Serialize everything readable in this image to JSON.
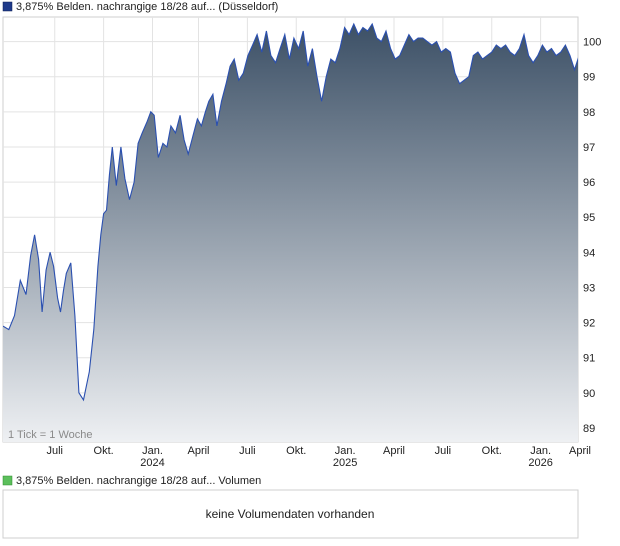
{
  "price_legend": {
    "label": "3,875% Belden. nachrangige 18/28 auf... (Düsseldorf)",
    "color": "#1f3a8a"
  },
  "volume_legend": {
    "label": "3,875% Belden. nachrangige 18/28 auf... Volumen",
    "color": "#5cbf5c"
  },
  "tick_note": "1 Tick = 1 Woche",
  "volume_message": "keine Volumendaten vorhanden",
  "colors": {
    "line": "#2b50b0",
    "fill_top": "#3c5066",
    "fill_bottom": "#eef0f3",
    "grid": "#e3e3e3",
    "frame": "#cfcfcf"
  },
  "chart_data": {
    "type": "area",
    "title": "",
    "xlabel": "",
    "ylabel": "",
    "ylim": [
      88.6,
      100.7
    ],
    "yticks": [
      89,
      90,
      91,
      92,
      93,
      94,
      95,
      96,
      97,
      98,
      99,
      100
    ],
    "x_tick_labels": [
      {
        "x": 0.09,
        "label": "Juli",
        "year": ""
      },
      {
        "x": 0.175,
        "label": "Okt.",
        "year": ""
      },
      {
        "x": 0.26,
        "label": "Jan.",
        "year": "2024"
      },
      {
        "x": 0.34,
        "label": "April",
        "year": ""
      },
      {
        "x": 0.425,
        "label": "Juli",
        "year": ""
      },
      {
        "x": 0.51,
        "label": "Okt.",
        "year": ""
      },
      {
        "x": 0.595,
        "label": "Jan.",
        "year": "2025"
      },
      {
        "x": 0.68,
        "label": "April",
        "year": ""
      },
      {
        "x": 0.765,
        "label": "Juli",
        "year": ""
      },
      {
        "x": 0.85,
        "label": "Okt.",
        "year": ""
      },
      {
        "x": 0.935,
        "label": "Jan.",
        "year": "2026"
      },
      {
        "x": 1.015,
        "label": "April",
        "year": ""
      }
    ],
    "series": [
      {
        "x": [
          0.0,
          0.01,
          0.02,
          0.03,
          0.04,
          0.048,
          0.055,
          0.062,
          0.068,
          0.075,
          0.082,
          0.088,
          0.095,
          0.1,
          0.105,
          0.11,
          0.118,
          0.125,
          0.132,
          0.14,
          0.15,
          0.158,
          0.165,
          0.17,
          0.175,
          0.18,
          0.185,
          0.19,
          0.197,
          0.205,
          0.212,
          0.22,
          0.228,
          0.235,
          0.242,
          0.25,
          0.257,
          0.263,
          0.27,
          0.278,
          0.285,
          0.292,
          0.3,
          0.308,
          0.315,
          0.322,
          0.33,
          0.338,
          0.345,
          0.352,
          0.358,
          0.365,
          0.372,
          0.38,
          0.388,
          0.395,
          0.402,
          0.41,
          0.418,
          0.426,
          0.434,
          0.442,
          0.45,
          0.458,
          0.466,
          0.474,
          0.482,
          0.49,
          0.498,
          0.506,
          0.514,
          0.522,
          0.53,
          0.538,
          0.546,
          0.554,
          0.562,
          0.57,
          0.578,
          0.586,
          0.594,
          0.602,
          0.61,
          0.618,
          0.626,
          0.634,
          0.642,
          0.65,
          0.658,
          0.666,
          0.674,
          0.682,
          0.69,
          0.698,
          0.706,
          0.714,
          0.722,
          0.73,
          0.738,
          0.746,
          0.754,
          0.762,
          0.77,
          0.778,
          0.786,
          0.794,
          0.802,
          0.81,
          0.818,
          0.826,
          0.834,
          0.842,
          0.85,
          0.858,
          0.866,
          0.874,
          0.882,
          0.89,
          0.898,
          0.906,
          0.914,
          0.922,
          0.93,
          0.938,
          0.946,
          0.954,
          0.962,
          0.97,
          0.978,
          0.986,
          0.994,
          1.002
        ],
        "values": [
          91.9,
          91.8,
          92.2,
          93.2,
          92.8,
          93.9,
          94.5,
          93.8,
          92.3,
          93.5,
          94.0,
          93.6,
          92.7,
          92.3,
          92.9,
          93.4,
          93.7,
          92.2,
          90.0,
          89.8,
          90.6,
          91.8,
          93.6,
          94.5,
          95.1,
          95.2,
          96.2,
          97.0,
          95.9,
          97.0,
          96.1,
          95.5,
          96.0,
          97.1,
          97.4,
          97.7,
          98.0,
          97.9,
          96.7,
          97.1,
          97.0,
          97.6,
          97.4,
          97.9,
          97.2,
          96.8,
          97.3,
          97.8,
          97.6,
          98.0,
          98.3,
          98.5,
          97.6,
          98.3,
          98.8,
          99.3,
          99.5,
          98.9,
          99.1,
          99.6,
          99.9,
          100.2,
          99.7,
          100.3,
          99.6,
          99.4,
          99.8,
          100.2,
          99.5,
          100.1,
          99.8,
          100.3,
          99.3,
          99.8,
          99.0,
          98.3,
          99.0,
          99.5,
          99.4,
          99.8,
          100.4,
          100.2,
          100.5,
          100.2,
          100.4,
          100.3,
          100.5,
          100.1,
          100.0,
          100.3,
          99.8,
          99.5,
          99.6,
          99.9,
          100.2,
          100.0,
          100.1,
          100.1,
          100.0,
          99.9,
          100.0,
          99.7,
          99.8,
          99.7,
          99.1,
          98.8,
          98.9,
          99.0,
          99.6,
          99.7,
          99.5,
          99.6,
          99.7,
          99.9,
          99.8,
          99.9,
          99.7,
          99.6,
          99.8,
          100.2,
          99.6,
          99.4,
          99.6,
          99.9,
          99.7,
          99.8,
          99.6,
          99.7,
          99.9,
          99.6,
          99.2,
          99.6
        ]
      }
    ]
  }
}
